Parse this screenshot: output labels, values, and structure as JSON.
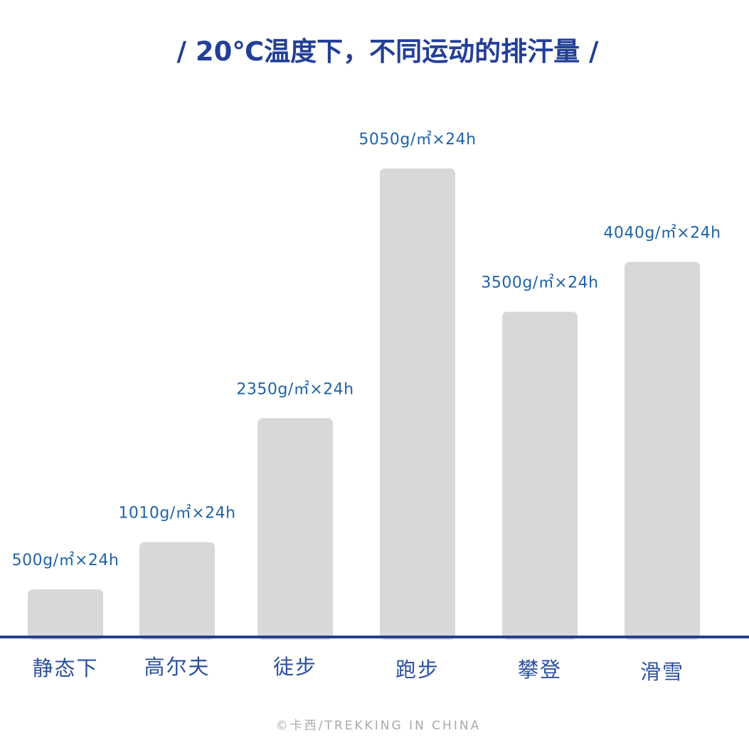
{
  "chart_data": {
    "type": "bar",
    "title": "/ 20℃温度下，不同运动的排汗量 /",
    "categories": [
      "静态下",
      "高尔夫",
      "徒步",
      "跑步",
      "攀登",
      "滑雪"
    ],
    "values": [
      500,
      1010,
      2350,
      5050,
      3500,
      4040
    ],
    "data_labels": [
      "500g/㎡×24h",
      "1010g/㎡×24h",
      "2350g/㎡×24h",
      "5050g/㎡×24h",
      "3500g/㎡×24h",
      "4040g/㎡×24h"
    ],
    "xlabel": "",
    "ylabel": "",
    "ylim": [
      0,
      5050
    ],
    "grid": false,
    "legend": "none",
    "colors": {
      "bar": "#d9d8d9",
      "title": "#233f97",
      "value_label": "#1f63a8",
      "category_label": "#2c4fa0",
      "axis": "#2b3e8c",
      "footer": "#a9a9a9"
    }
  },
  "footer": "©卡西/TREKKING IN CHINA"
}
